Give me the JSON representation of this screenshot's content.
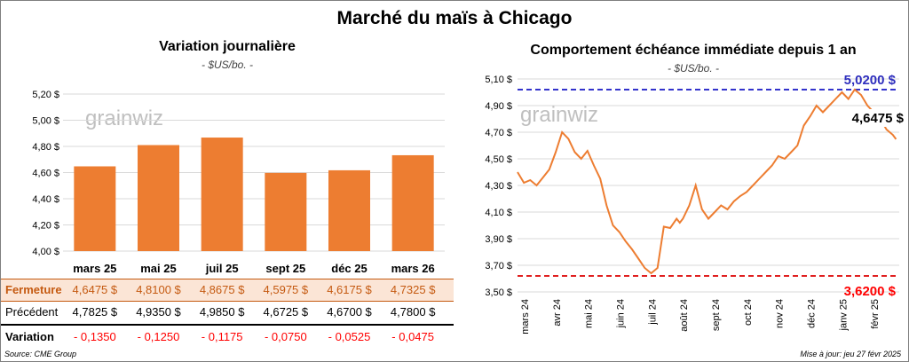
{
  "main_title": "Marché du maïs à Chicago",
  "left": {
    "title": "Variation journalière",
    "unit": "- $US/bo. -",
    "watermark": "grainwiz"
  },
  "right": {
    "title": "Comportement échéance immédiate depuis 1 an",
    "unit": "- $US/bo. -",
    "watermark": "grainwiz",
    "max_label": "5,0200 $",
    "min_label": "3,6200 $",
    "last_label": "4,6475 $"
  },
  "table": {
    "row_close_label": "Fermeture",
    "row_prev_label": "Précédent",
    "row_var_label": "Variation",
    "close": [
      "4,6475  $",
      "4,8100  $",
      "4,8675  $",
      "4,5975  $",
      "4,6175  $",
      "4,7325  $"
    ],
    "prev": [
      "4,7825  $",
      "4,9350  $",
      "4,9850  $",
      "4,6725  $",
      "4,6700  $",
      "4,7800  $"
    ],
    "variation": [
      "- 0,1350",
      "- 0,1250",
      "- 0,1175",
      "- 0,0750",
      "- 0,0525",
      "- 0,0475"
    ]
  },
  "footer": {
    "source": "Source: CME Group",
    "update": "Mise à jour: jeu 27 févr 2025"
  },
  "colors": {
    "bar": "#ed7d31",
    "max_line": "#3333cc",
    "min_line": "#e02020",
    "min_label": "#ff0000",
    "max_label": "#2e2ebd"
  },
  "chart_data": [
    {
      "type": "bar",
      "title": "Variation journalière",
      "ylabel": "$US/bo.",
      "categories": [
        "mars 25",
        "mai 25",
        "juil 25",
        "sept 25",
        "déc 25",
        "mars 26"
      ],
      "values": [
        4.6475,
        4.81,
        4.8675,
        4.5975,
        4.6175,
        4.7325
      ],
      "ylim": [
        4.0,
        5.2
      ],
      "yticks": [
        "4,00 $",
        "4,20 $",
        "4,40 $",
        "4,60 $",
        "4,80 $",
        "5,00 $",
        "5,20 $"
      ],
      "grid": true
    },
    {
      "type": "line",
      "title": "Comportement échéance immédiate depuis 1 an",
      "ylabel": "$US/bo.",
      "ylim": [
        3.5,
        5.1
      ],
      "yticks": [
        "3,50 $",
        "3,70 $",
        "3,90 $",
        "4,10 $",
        "4,30 $",
        "4,50 $",
        "4,70 $",
        "4,90 $",
        "5,10 $"
      ],
      "xticks": [
        "mars 24",
        "avr 24",
        "mai 24",
        "juin 24",
        "juil 24",
        "août 24",
        "sept 24",
        "oct 24",
        "nov 24",
        "déc 24",
        "janv 25",
        "févr 25"
      ],
      "max": 5.02,
      "min": 3.62,
      "last": 4.6475,
      "x": [
        0,
        0.2,
        0.4,
        0.6,
        0.8,
        1.0,
        1.2,
        1.4,
        1.6,
        1.8,
        2.0,
        2.2,
        2.4,
        2.6,
        2.8,
        3.0,
        3.2,
        3.4,
        3.6,
        3.8,
        4.0,
        4.2,
        4.4,
        4.6,
        4.8,
        5.0,
        5.1,
        5.2,
        5.4,
        5.6,
        5.8,
        6.0,
        6.2,
        6.4,
        6.6,
        6.8,
        7.0,
        7.2,
        7.4,
        7.6,
        7.8,
        8.0,
        8.2,
        8.4,
        8.6,
        8.8,
        9.0,
        9.2,
        9.4,
        9.6,
        9.8,
        10.0,
        10.2,
        10.4,
        10.6,
        10.8,
        11.0,
        11.2,
        11.4,
        11.6,
        11.8,
        11.9
      ],
      "y": [
        4.4,
        4.32,
        4.34,
        4.3,
        4.36,
        4.42,
        4.55,
        4.7,
        4.65,
        4.55,
        4.5,
        4.56,
        4.45,
        4.35,
        4.15,
        4.0,
        3.95,
        3.88,
        3.82,
        3.75,
        3.68,
        3.64,
        3.68,
        3.99,
        3.98,
        4.05,
        4.02,
        4.05,
        4.15,
        4.3,
        4.12,
        4.05,
        4.1,
        4.15,
        4.12,
        4.18,
        4.22,
        4.25,
        4.3,
        4.35,
        4.4,
        4.45,
        4.52,
        4.5,
        4.55,
        4.6,
        4.75,
        4.82,
        4.9,
        4.85,
        4.9,
        4.95,
        5.0,
        4.95,
        5.02,
        4.98,
        4.9,
        4.85,
        4.8,
        4.72,
        4.68,
        4.6475
      ],
      "grid": true
    }
  ]
}
